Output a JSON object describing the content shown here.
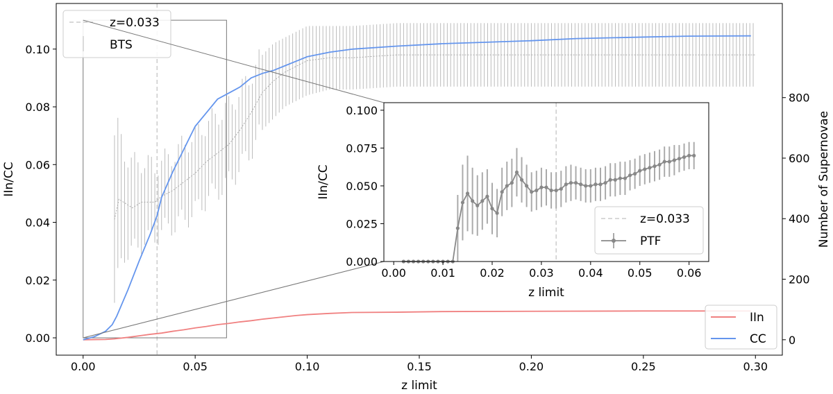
{
  "chart_data": [
    {
      "type": "line",
      "name": "main",
      "xlabel": "z limit",
      "ylabel_left": "IIn/CC",
      "ylabel_right": "Number of Supernovae",
      "xlim": [
        -0.012,
        0.312
      ],
      "ylim_left": [
        -0.006,
        0.1158
      ],
      "ylim_right": [
        -50.9,
        1111
      ],
      "x_ticks": [
        0.0,
        0.05,
        0.1,
        0.15,
        0.2,
        0.25,
        0.3
      ],
      "x_tick_labels": [
        "0.00",
        "0.05",
        "0.10",
        "0.15",
        "0.20",
        "0.25",
        "0.30"
      ],
      "y_left_ticks": [
        0.0,
        0.02,
        0.04,
        0.06,
        0.08,
        0.1
      ],
      "y_left_tick_labels": [
        "0.00",
        "0.02",
        "0.04",
        "0.06",
        "0.08",
        "0.10"
      ],
      "y_right_ticks": [
        0,
        200,
        400,
        600,
        800
      ],
      "y_right_tick_labels": [
        "0",
        "200",
        "400",
        "600",
        "800"
      ],
      "vline": {
        "x": 0.033,
        "label": "z=0.033",
        "color": "#cccccc"
      },
      "bts_series": {
        "name": "BTS",
        "color": "#bbbbbb",
        "points": [
          [
            0.014,
            0.041,
            0.029
          ],
          [
            0.016,
            0.048,
            0.025
          ],
          [
            0.018,
            0.047,
            0.018
          ],
          [
            0.02,
            0.046,
            0.016
          ],
          [
            0.022,
            0.045,
            0.015
          ],
          [
            0.024,
            0.046,
            0.015
          ],
          [
            0.026,
            0.047,
            0.014
          ],
          [
            0.028,
            0.047,
            0.013
          ],
          [
            0.03,
            0.047,
            0.013
          ],
          [
            0.032,
            0.047,
            0.012
          ],
          [
            0.035,
            0.049,
            0.012
          ],
          [
            0.04,
            0.051,
            0.012
          ],
          [
            0.045,
            0.054,
            0.013
          ],
          [
            0.05,
            0.057,
            0.013
          ],
          [
            0.055,
            0.061,
            0.013
          ],
          [
            0.06,
            0.064,
            0.013
          ],
          [
            0.065,
            0.067,
            0.013
          ],
          [
            0.07,
            0.072,
            0.013
          ],
          [
            0.075,
            0.078,
            0.013
          ],
          [
            0.08,
            0.085,
            0.013
          ],
          [
            0.085,
            0.089,
            0.013
          ],
          [
            0.09,
            0.092,
            0.012
          ],
          [
            0.095,
            0.094,
            0.012
          ],
          [
            0.1,
            0.096,
            0.012
          ],
          [
            0.11,
            0.097,
            0.011
          ],
          [
            0.12,
            0.097,
            0.011
          ],
          [
            0.14,
            0.098,
            0.011
          ],
          [
            0.16,
            0.098,
            0.011
          ],
          [
            0.2,
            0.098,
            0.011
          ],
          [
            0.25,
            0.098,
            0.011
          ],
          [
            0.3,
            0.098,
            0.011
          ]
        ]
      },
      "iin_series": {
        "name": "IIn",
        "color": "#f08080",
        "points": [
          [
            0.0,
            0
          ],
          [
            0.01,
            1
          ],
          [
            0.014,
            3
          ],
          [
            0.02,
            8
          ],
          [
            0.025,
            13
          ],
          [
            0.03,
            18
          ],
          [
            0.035,
            22
          ],
          [
            0.04,
            28
          ],
          [
            0.045,
            33
          ],
          [
            0.05,
            39
          ],
          [
            0.055,
            44
          ],
          [
            0.06,
            50
          ],
          [
            0.065,
            54
          ],
          [
            0.07,
            59
          ],
          [
            0.075,
            63
          ],
          [
            0.08,
            68
          ],
          [
            0.085,
            72
          ],
          [
            0.09,
            76
          ],
          [
            0.095,
            80
          ],
          [
            0.1,
            83
          ],
          [
            0.11,
            87
          ],
          [
            0.12,
            90
          ],
          [
            0.14,
            91
          ],
          [
            0.16,
            93
          ],
          [
            0.2,
            94
          ],
          [
            0.25,
            95
          ],
          [
            0.298,
            95
          ]
        ]
      },
      "cc_series": {
        "name": "CC",
        "color": "#6495ed",
        "points": [
          [
            0.0,
            0
          ],
          [
            0.005,
            10
          ],
          [
            0.01,
            28
          ],
          [
            0.013,
            50
          ],
          [
            0.015,
            78
          ],
          [
            0.02,
            165
          ],
          [
            0.025,
            260
          ],
          [
            0.03,
            350
          ],
          [
            0.033,
            410
          ],
          [
            0.035,
            470
          ],
          [
            0.04,
            555
          ],
          [
            0.045,
            630
          ],
          [
            0.05,
            705
          ],
          [
            0.055,
            750
          ],
          [
            0.06,
            795
          ],
          [
            0.065,
            815
          ],
          [
            0.07,
            835
          ],
          [
            0.075,
            865
          ],
          [
            0.08,
            880
          ],
          [
            0.085,
            890
          ],
          [
            0.09,
            905
          ],
          [
            0.095,
            920
          ],
          [
            0.1,
            935
          ],
          [
            0.11,
            950
          ],
          [
            0.12,
            960
          ],
          [
            0.14,
            970
          ],
          [
            0.16,
            978
          ],
          [
            0.18,
            983
          ],
          [
            0.2,
            988
          ],
          [
            0.22,
            995
          ],
          [
            0.25,
            1000
          ],
          [
            0.27,
            1003
          ],
          [
            0.298,
            1004
          ]
        ]
      },
      "zoom_box": {
        "x0": 0.0,
        "x1": 0.064,
        "y0": 0.0,
        "y1": 0.11
      },
      "legend_top_left": [
        "z=0.033",
        "BTS"
      ],
      "legend_bottom_right": [
        "IIn",
        "CC"
      ]
    },
    {
      "type": "line",
      "name": "inset",
      "xlabel": "z limit",
      "ylabel": "IIn/CC",
      "xlim": [
        -0.002,
        0.064
      ],
      "ylim": [
        0.0,
        0.105
      ],
      "x_ticks": [
        0.0,
        0.01,
        0.02,
        0.03,
        0.04,
        0.05,
        0.06
      ],
      "x_tick_labels": [
        "0.00",
        "0.01",
        "0.02",
        "0.03",
        "0.04",
        "0.05",
        "0.06"
      ],
      "y_ticks": [
        0.0,
        0.025,
        0.05,
        0.075,
        0.1
      ],
      "y_tick_labels": [
        "0.000",
        "0.025",
        "0.050",
        "0.075",
        "0.100"
      ],
      "vline": {
        "x": 0.033,
        "label": "z=0.033",
        "color": "#cccccc"
      },
      "legend": [
        "z=0.033",
        "PTF"
      ],
      "ptf_series": {
        "name": "PTF",
        "color": "#888888",
        "x": [
          0.002,
          0.003,
          0.004,
          0.005,
          0.006,
          0.007,
          0.008,
          0.009,
          0.01,
          0.011,
          0.012,
          0.013,
          0.014,
          0.015,
          0.016,
          0.017,
          0.018,
          0.019,
          0.02,
          0.021,
          0.022,
          0.023,
          0.024,
          0.025,
          0.026,
          0.027,
          0.028,
          0.029,
          0.03,
          0.031,
          0.032,
          0.033,
          0.034,
          0.035,
          0.036,
          0.037,
          0.038,
          0.039,
          0.04,
          0.041,
          0.042,
          0.043,
          0.044,
          0.045,
          0.046,
          0.047,
          0.048,
          0.049,
          0.05,
          0.051,
          0.052,
          0.053,
          0.054,
          0.055,
          0.056,
          0.057,
          0.058,
          0.059,
          0.06,
          0.061
        ],
        "y": [
          0,
          0,
          0,
          0,
          0,
          0,
          0,
          0,
          0,
          0,
          0,
          0.022,
          0.039,
          0.045,
          0.04,
          0.037,
          0.04,
          0.043,
          0.035,
          0.032,
          0.046,
          0.05,
          0.052,
          0.059,
          0.054,
          0.05,
          0.046,
          0.047,
          0.049,
          0.049,
          0.047,
          0.047,
          0.048,
          0.051,
          0.052,
          0.052,
          0.051,
          0.05,
          0.05,
          0.051,
          0.051,
          0.052,
          0.054,
          0.054,
          0.055,
          0.055,
          0.057,
          0.058,
          0.06,
          0.061,
          0.062,
          0.063,
          0.064,
          0.066,
          0.066,
          0.067,
          0.068,
          0.069,
          0.07,
          0.07
        ],
        "err": [
          0,
          0,
          0,
          0,
          0,
          0,
          0,
          0,
          0,
          0,
          0,
          0.022,
          0.025,
          0.025,
          0.022,
          0.02,
          0.019,
          0.018,
          0.017,
          0.016,
          0.016,
          0.016,
          0.016,
          0.016,
          0.015,
          0.014,
          0.013,
          0.013,
          0.013,
          0.012,
          0.012,
          0.012,
          0.012,
          0.012,
          0.012,
          0.011,
          0.011,
          0.011,
          0.011,
          0.011,
          0.011,
          0.011,
          0.011,
          0.011,
          0.011,
          0.011,
          0.01,
          0.01,
          0.01,
          0.01,
          0.01,
          0.01,
          0.01,
          0.01,
          0.01,
          0.01,
          0.009,
          0.009,
          0.009,
          0.009
        ]
      }
    }
  ]
}
